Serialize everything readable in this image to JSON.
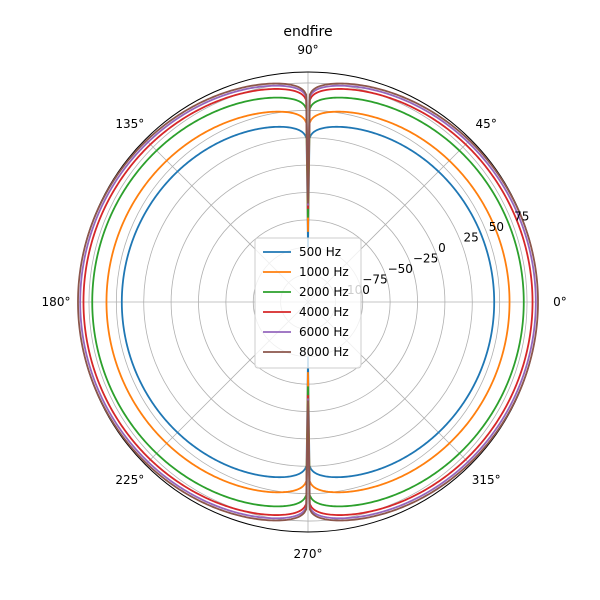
{
  "chart_data": {
    "type": "line",
    "projection": "polar",
    "title": "endfire",
    "theta_ticks_deg": [
      0,
      45,
      90,
      135,
      180,
      225,
      270,
      315
    ],
    "theta_tick_labels": [
      "0°",
      "45°",
      "90°",
      "135°",
      "180°",
      "225°",
      "270°",
      "315°"
    ],
    "r_ticks": [
      -100,
      -75,
      -50,
      -25,
      0,
      25,
      50,
      75
    ],
    "r_tick_labels": [
      "−100",
      "−75",
      "−50",
      "−25",
      "0",
      "25",
      "50",
      "75"
    ],
    "r_label_angle_deg": 22.5,
    "rlim": [
      -125,
      85
    ],
    "grid": true,
    "legend_position": "center",
    "series": [
      {
        "name": "500 Hz",
        "color": "#1f77b4",
        "r_max": 45,
        "pattern": "endfire-cardioid-null-at-90-and-270"
      },
      {
        "name": "1000 Hz",
        "color": "#ff7f0e",
        "r_max": 59,
        "pattern": "endfire-cardioid-null-at-90-and-270"
      },
      {
        "name": "2000 Hz",
        "color": "#2ca02c",
        "r_max": 72,
        "pattern": "endfire-cardioid-null-at-90-and-270"
      },
      {
        "name": "4000 Hz",
        "color": "#d62728",
        "r_max": 80,
        "pattern": "endfire-cardioid-null-at-90-and-270"
      },
      {
        "name": "6000 Hz",
        "color": "#9467bd",
        "r_max": 83,
        "pattern": "endfire-cardioid-null-at-90-and-270"
      },
      {
        "name": "8000 Hz",
        "color": "#8c564b",
        "r_max": 85,
        "pattern": "endfire-cardioid-null-at-90-and-270"
      }
    ]
  }
}
